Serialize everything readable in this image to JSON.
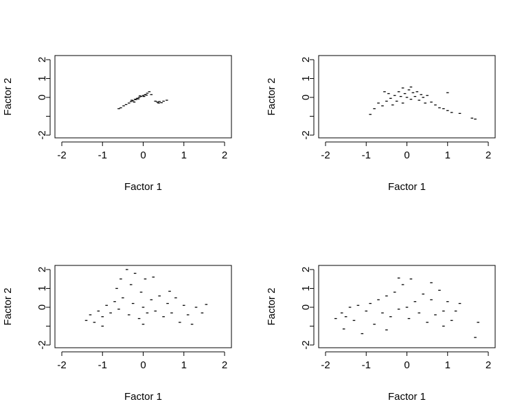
{
  "chart_data": [
    {
      "type": "scatter",
      "xlabel": "Factor 1",
      "ylabel": "Factor 2",
      "xlim": [
        -2,
        2
      ],
      "ylim": [
        -2,
        2
      ],
      "xticks": [
        "-2",
        "-1",
        "0",
        "1",
        "2"
      ],
      "yticks": [
        "-2",
        "0",
        "1",
        "2"
      ],
      "grid": false,
      "points": [
        {
          "x": -0.55,
          "y": -0.55
        },
        {
          "x": -0.48,
          "y": -0.45
        },
        {
          "x": -0.42,
          "y": -0.38
        },
        {
          "x": -0.35,
          "y": -0.3
        },
        {
          "x": -0.3,
          "y": -0.22
        },
        {
          "x": -0.25,
          "y": -0.18
        },
        {
          "x": -0.2,
          "y": -0.1
        },
        {
          "x": -0.15,
          "y": -0.05
        },
        {
          "x": -0.1,
          "y": 0.0
        },
        {
          "x": -0.05,
          "y": 0.05
        },
        {
          "x": 0.0,
          "y": 0.1
        },
        {
          "x": 0.05,
          "y": 0.15
        },
        {
          "x": 0.1,
          "y": 0.22
        },
        {
          "x": 0.15,
          "y": 0.3
        },
        {
          "x": -0.28,
          "y": -0.15
        },
        {
          "x": -0.18,
          "y": -0.12
        },
        {
          "x": -0.08,
          "y": 0.08
        },
        {
          "x": 0.02,
          "y": 0.05
        },
        {
          "x": 0.08,
          "y": 0.12
        },
        {
          "x": -0.12,
          "y": -0.08
        },
        {
          "x": 0.2,
          "y": 0.15
        },
        {
          "x": 0.3,
          "y": -0.2
        },
        {
          "x": 0.35,
          "y": -0.25
        },
        {
          "x": 0.4,
          "y": -0.22
        },
        {
          "x": 0.45,
          "y": -0.28
        },
        {
          "x": 0.5,
          "y": -0.2
        },
        {
          "x": 0.58,
          "y": -0.15
        },
        {
          "x": 0.38,
          "y": -0.3
        },
        {
          "x": -0.6,
          "y": -0.6
        },
        {
          "x": -0.22,
          "y": -0.25
        }
      ]
    },
    {
      "type": "scatter",
      "xlabel": "Factor 1",
      "ylabel": "Factor 2",
      "xlim": [
        -2,
        2
      ],
      "ylim": [
        -2,
        2
      ],
      "xticks": [
        "-2",
        "-1",
        "0",
        "1",
        "2"
      ],
      "yticks": [
        "-2",
        "0",
        "1",
        "2"
      ],
      "grid": false,
      "points": [
        {
          "x": -0.8,
          "y": -0.6
        },
        {
          "x": -0.7,
          "y": -0.3
        },
        {
          "x": -0.6,
          "y": -0.45
        },
        {
          "x": -0.5,
          "y": -0.2
        },
        {
          "x": -0.45,
          "y": 0.2
        },
        {
          "x": -0.4,
          "y": -0.05
        },
        {
          "x": -0.35,
          "y": -0.4
        },
        {
          "x": -0.3,
          "y": 0.1
        },
        {
          "x": -0.25,
          "y": -0.2
        },
        {
          "x": -0.2,
          "y": 0.3
        },
        {
          "x": -0.15,
          "y": 0.05
        },
        {
          "x": -0.1,
          "y": -0.3
        },
        {
          "x": -0.05,
          "y": 0.2
        },
        {
          "x": 0.0,
          "y": 0.0
        },
        {
          "x": 0.05,
          "y": 0.4
        },
        {
          "x": 0.1,
          "y": -0.1
        },
        {
          "x": 0.15,
          "y": 0.25
        },
        {
          "x": 0.2,
          "y": 0.05
        },
        {
          "x": 0.25,
          "y": 0.3
        },
        {
          "x": 0.3,
          "y": -0.15
        },
        {
          "x": 0.35,
          "y": 0.15
        },
        {
          "x": 0.4,
          "y": 0.0
        },
        {
          "x": 0.45,
          "y": -0.3
        },
        {
          "x": 0.5,
          "y": 0.1
        },
        {
          "x": 0.6,
          "y": -0.25
        },
        {
          "x": 0.7,
          "y": -0.4
        },
        {
          "x": 0.8,
          "y": -0.55
        },
        {
          "x": 0.9,
          "y": -0.6
        },
        {
          "x": 1.0,
          "y": -0.7
        },
        {
          "x": 1.1,
          "y": -0.8
        },
        {
          "x": 1.3,
          "y": -0.85
        },
        {
          "x": 1.6,
          "y": -1.1
        },
        {
          "x": 1.68,
          "y": -1.15
        },
        {
          "x": 1.0,
          "y": 0.25
        },
        {
          "x": -0.55,
          "y": 0.3
        },
        {
          "x": -0.9,
          "y": -0.9
        },
        {
          "x": 0.1,
          "y": 0.55
        },
        {
          "x": -0.1,
          "y": 0.5
        }
      ]
    },
    {
      "type": "scatter",
      "xlabel": "Factor 1",
      "ylabel": "Factor 2",
      "xlim": [
        -2,
        2
      ],
      "ylim": [
        -2,
        2
      ],
      "xticks": [
        "-2",
        "-1",
        "0",
        "1",
        "2"
      ],
      "yticks": [
        "-2",
        "0",
        "1",
        "2"
      ],
      "grid": false,
      "points": [
        {
          "x": -1.4,
          "y": -0.7
        },
        {
          "x": -1.3,
          "y": -0.4
        },
        {
          "x": -1.2,
          "y": -0.8
        },
        {
          "x": -1.1,
          "y": -0.2
        },
        {
          "x": -1.0,
          "y": -0.5
        },
        {
          "x": -0.9,
          "y": 0.1
        },
        {
          "x": -0.8,
          "y": -0.3
        },
        {
          "x": -0.7,
          "y": 0.3
        },
        {
          "x": -0.65,
          "y": 1.0
        },
        {
          "x": -0.6,
          "y": -0.1
        },
        {
          "x": -0.55,
          "y": 1.5
        },
        {
          "x": -0.5,
          "y": 0.5
        },
        {
          "x": -0.4,
          "y": 2.0
        },
        {
          "x": -0.35,
          "y": -0.4
        },
        {
          "x": -0.3,
          "y": 1.2
        },
        {
          "x": -0.25,
          "y": 0.2
        },
        {
          "x": -0.2,
          "y": 1.8
        },
        {
          "x": -0.1,
          "y": -0.6
        },
        {
          "x": -0.05,
          "y": 0.8
        },
        {
          "x": 0.0,
          "y": 0.0
        },
        {
          "x": 0.05,
          "y": 1.5
        },
        {
          "x": 0.1,
          "y": -0.3
        },
        {
          "x": 0.2,
          "y": 0.4
        },
        {
          "x": 0.25,
          "y": 1.6
        },
        {
          "x": 0.3,
          "y": -0.2
        },
        {
          "x": 0.4,
          "y": 0.6
        },
        {
          "x": 0.5,
          "y": -0.5
        },
        {
          "x": 0.6,
          "y": 0.2
        },
        {
          "x": 0.7,
          "y": -0.3
        },
        {
          "x": 0.8,
          "y": 0.5
        },
        {
          "x": 0.9,
          "y": -0.8
        },
        {
          "x": 1.0,
          "y": 0.1
        },
        {
          "x": 1.1,
          "y": -0.4
        },
        {
          "x": 1.2,
          "y": -0.9
        },
        {
          "x": 1.3,
          "y": 0.0
        },
        {
          "x": 1.45,
          "y": -0.3
        },
        {
          "x": 1.55,
          "y": 0.15
        },
        {
          "x": -1.0,
          "y": -1.0
        },
        {
          "x": 0.0,
          "y": -0.9
        },
        {
          "x": 0.65,
          "y": 0.85
        }
      ]
    },
    {
      "type": "scatter",
      "xlabel": "Factor 1",
      "ylabel": "Factor 2",
      "xlim": [
        -2,
        2
      ],
      "ylim": [
        -2,
        2
      ],
      "xticks": [
        "-2",
        "-1",
        "0",
        "1",
        "2"
      ],
      "yticks": [
        "-2",
        "0",
        "1",
        "2"
      ],
      "grid": false,
      "points": [
        {
          "x": -1.75,
          "y": -0.6
        },
        {
          "x": -1.6,
          "y": -0.3
        },
        {
          "x": -1.5,
          "y": -0.5
        },
        {
          "x": -1.4,
          "y": 0.0
        },
        {
          "x": -1.3,
          "y": -0.7
        },
        {
          "x": -1.2,
          "y": 0.1
        },
        {
          "x": -1.1,
          "y": -1.4
        },
        {
          "x": -1.0,
          "y": -0.2
        },
        {
          "x": -0.9,
          "y": 0.2
        },
        {
          "x": -0.8,
          "y": -0.9
        },
        {
          "x": -0.7,
          "y": 0.4
        },
        {
          "x": -0.6,
          "y": -0.3
        },
        {
          "x": -0.5,
          "y": 0.6
        },
        {
          "x": -0.4,
          "y": -0.5
        },
        {
          "x": -0.3,
          "y": 0.8
        },
        {
          "x": -0.2,
          "y": -0.1
        },
        {
          "x": -0.1,
          "y": 1.2
        },
        {
          "x": 0.0,
          "y": 0.0
        },
        {
          "x": 0.05,
          "y": -0.6
        },
        {
          "x": 0.1,
          "y": 1.5
        },
        {
          "x": 0.2,
          "y": 0.3
        },
        {
          "x": 0.3,
          "y": -0.3
        },
        {
          "x": 0.4,
          "y": 0.7
        },
        {
          "x": 0.5,
          "y": -0.8
        },
        {
          "x": 0.6,
          "y": 0.4
        },
        {
          "x": 0.7,
          "y": -0.4
        },
        {
          "x": 0.8,
          "y": 0.9
        },
        {
          "x": 0.9,
          "y": -0.2
        },
        {
          "x": 1.0,
          "y": 0.3
        },
        {
          "x": 1.1,
          "y": -0.7
        },
        {
          "x": 1.2,
          "y": -0.2
        },
        {
          "x": 1.3,
          "y": 0.2
        },
        {
          "x": 1.75,
          "y": -0.8
        },
        {
          "x": 1.68,
          "y": -1.6
        },
        {
          "x": -0.5,
          "y": -1.2
        },
        {
          "x": 0.6,
          "y": 1.3
        },
        {
          "x": -1.55,
          "y": -1.15
        },
        {
          "x": -0.2,
          "y": 1.55
        },
        {
          "x": 0.9,
          "y": -1.0
        }
      ]
    }
  ]
}
